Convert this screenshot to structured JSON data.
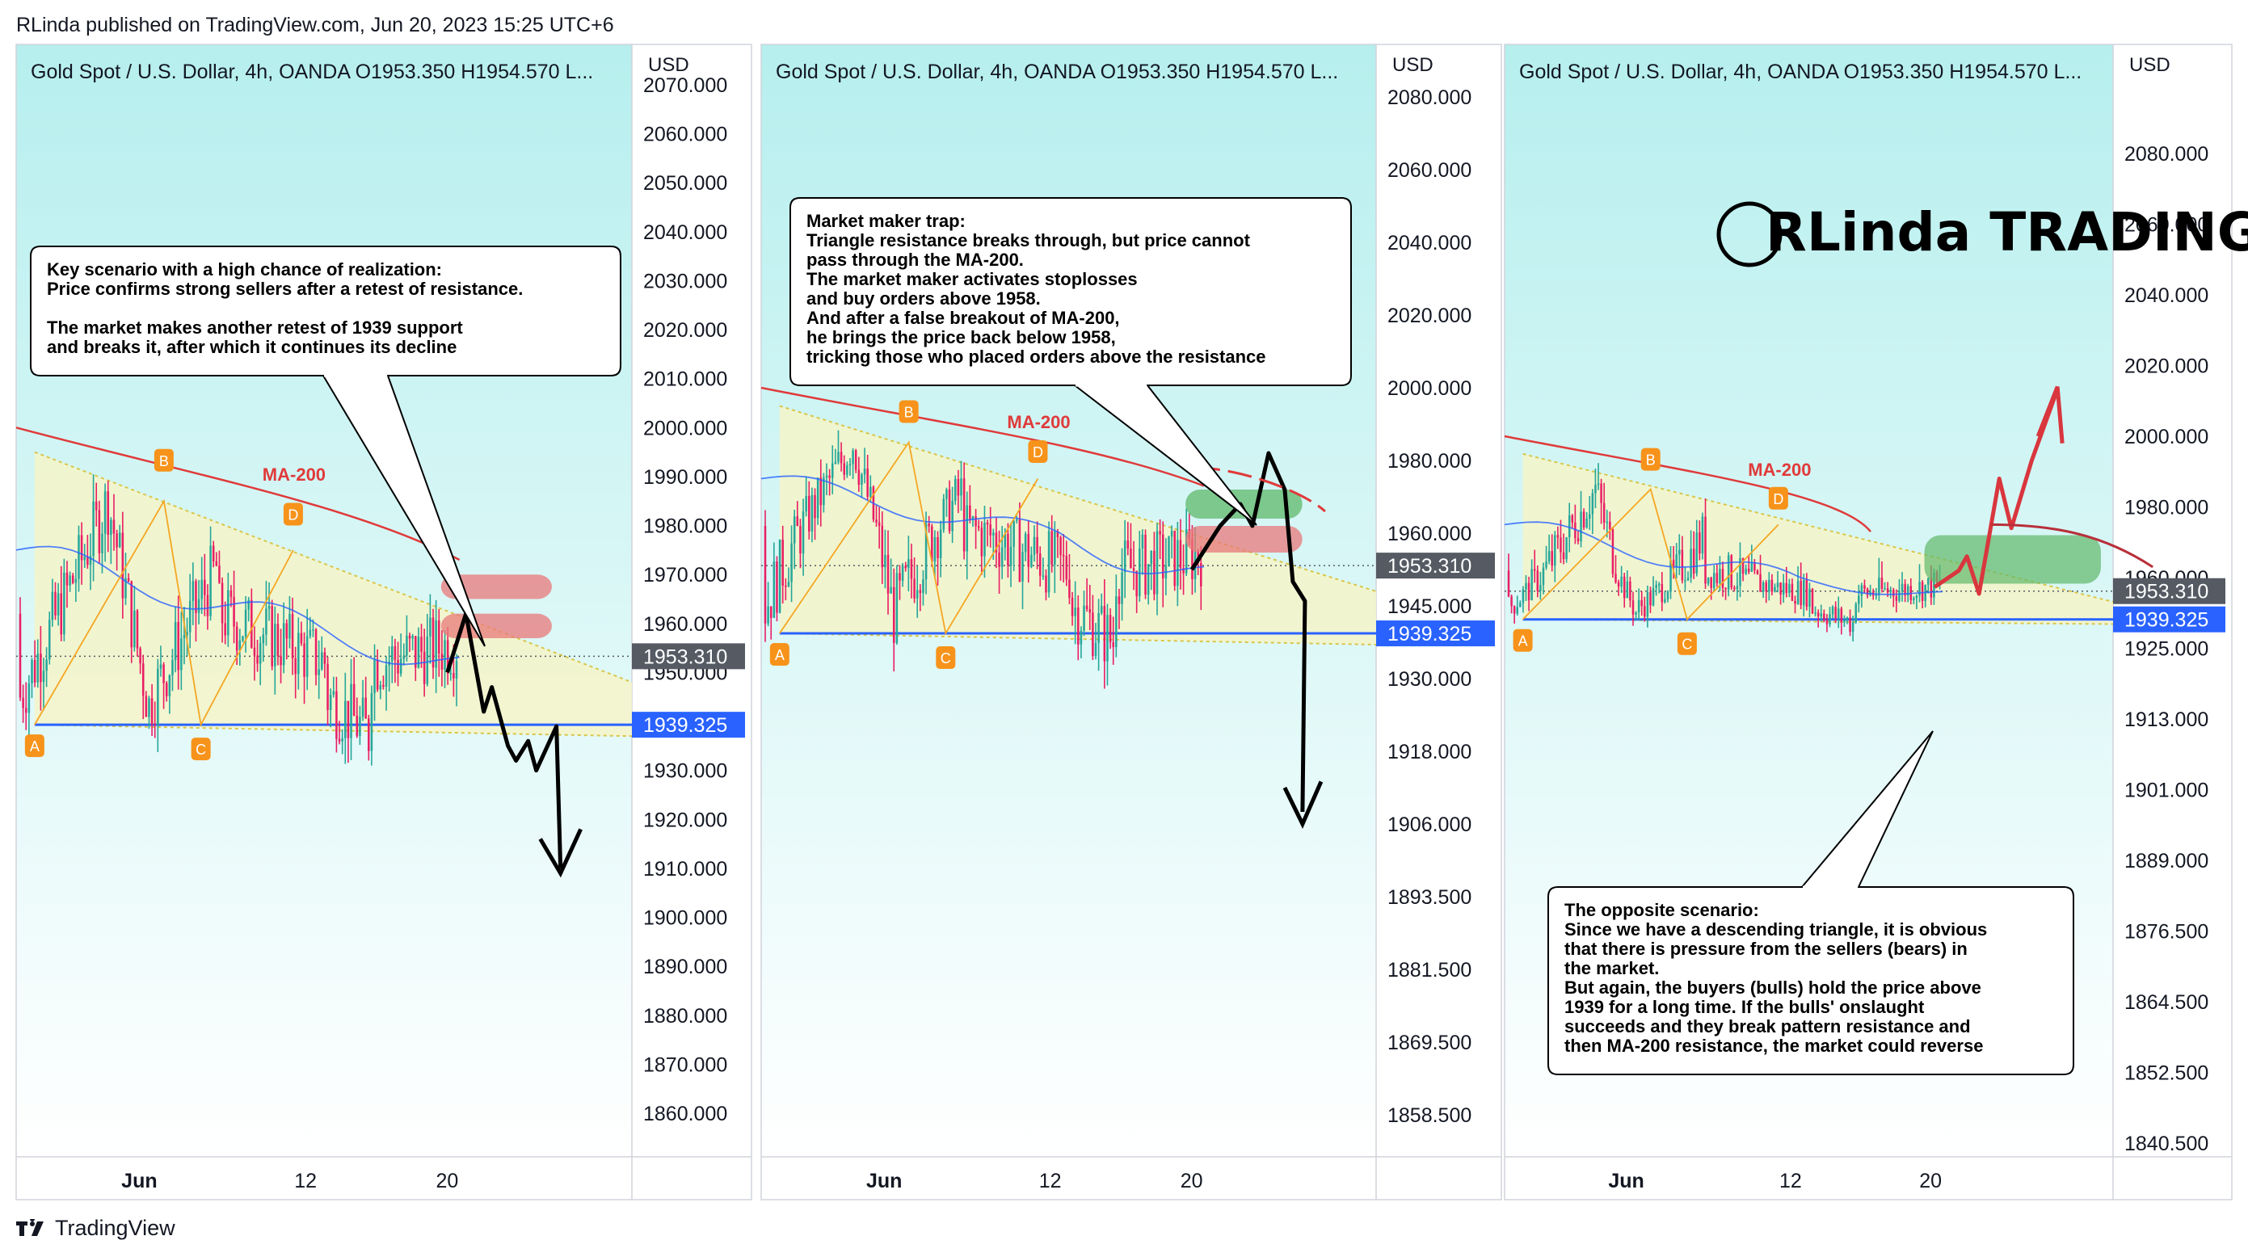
{
  "header": "RLinda published on TradingView.com, Jun 20, 2023 15:25 UTC+6",
  "footer": {
    "brand": "TradingView",
    "icon": "tradingview-logo-icon"
  },
  "logo": {
    "text": "RLinda TRADING",
    "icon": "rlinda-logo-icon"
  },
  "colors": {
    "bull": "#26a69a",
    "bear": "#e91e63",
    "ma200": "#e03a3a",
    "ma50": "#2962ff",
    "support": "#2962ff",
    "marker": "#f7931a",
    "triangle": "#f5f5c8",
    "last_price": "#555a63"
  },
  "chart_data": [
    {
      "type": "candlestick",
      "title": "Gold Spot / U.S. Dollar, 4h, OANDA  O1953.350  H1954.570  L...",
      "currency": "USD",
      "y_ticks": [
        "2070.000",
        "2060.000",
        "2050.000",
        "2040.000",
        "2030.000",
        "2020.000",
        "2010.000",
        "2000.000",
        "1990.000",
        "1980.000",
        "1970.000",
        "1960.000",
        "1950.000",
        "1940.000",
        "1930.000",
        "1920.000",
        "1910.000",
        "1900.000",
        "1890.000",
        "1880.000",
        "1870.000",
        "1860.000"
      ],
      "x_ticks": [
        "Jun",
        "12",
        "20"
      ],
      "last_price": "1953.310",
      "support_price": "1939.325",
      "ma_label": "MA-200",
      "pattern_points": [
        "A",
        "B",
        "C",
        "D"
      ],
      "zones": [
        "red"
      ],
      "projection": "down",
      "note": [
        "Key scenario with a high chance of realization:",
        "Price confirms strong sellers after a retest of resistance.",
        "",
        "The market makes another retest of 1939 support",
        "and breaks it, after which it continues its decline"
      ]
    },
    {
      "type": "candlestick",
      "title": "Gold Spot / U.S. Dollar, 4h, OANDA  O1953.350  H1954.570  L...",
      "currency": "USD",
      "y_ticks": [
        "2080.000",
        "2060.000",
        "2040.000",
        "2020.000",
        "2000.000",
        "1980.000",
        "1960.000",
        "1945.000",
        "1930.000",
        "1918.000",
        "1906.000",
        "1893.500",
        "1881.500",
        "1869.500",
        "1858.500"
      ],
      "x_ticks": [
        "Jun",
        "12",
        "20"
      ],
      "last_price": "1953.310",
      "support_price": "1939.325",
      "ma_label": "MA-200",
      "pattern_points": [
        "A",
        "B",
        "C",
        "D"
      ],
      "zones": [
        "green",
        "red"
      ],
      "projection": "fake-up-then-down",
      "note": [
        "Market maker trap:",
        "Triangle resistance breaks through, but price cannot",
        "pass through the MA-200.",
        "The market maker activates stoplosses",
        "and buy orders above 1958.",
        "And after a false breakout of MA-200,",
        "he brings the price back below 1958,",
        "tricking those who placed orders above the resistance"
      ]
    },
    {
      "type": "candlestick",
      "title": "Gold Spot / U.S. Dollar, 4h, OANDA  O1953.350  H1954.570  L...",
      "currency": "USD",
      "y_ticks": [
        "2080.000",
        "2060.000",
        "2040.000",
        "2020.000",
        "2000.000",
        "1980.000",
        "1960.000",
        "1925.000",
        "1913.000",
        "1901.000",
        "1889.000",
        "1876.500",
        "1864.500",
        "1852.500",
        "1840.500"
      ],
      "x_ticks": [
        "Jun",
        "12",
        "20"
      ],
      "last_price": "1953.310",
      "support_price": "1939.325",
      "ma_label": "MA-200",
      "pattern_points": [
        "A",
        "B",
        "C",
        "D"
      ],
      "zones": [
        "green"
      ],
      "projection": "up",
      "note": [
        "The opposite scenario:",
        "Since we have a descending triangle, it is obvious",
        "that there is pressure from the sellers (bears) in",
        " the market.",
        "But again, the buyers (bulls) hold the price above",
        "1939 for a long time. If the bulls' onslaught",
        "succeeds and they break pattern resistance and",
        "then MA-200 resistance, the market could reverse"
      ]
    }
  ]
}
